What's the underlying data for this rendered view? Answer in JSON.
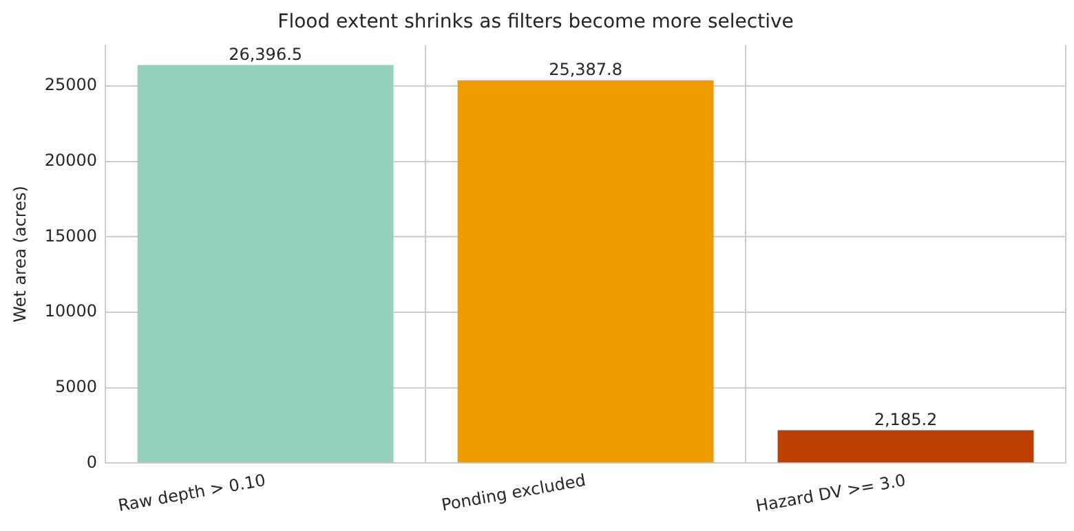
{
  "chart_data": {
    "type": "bar",
    "title": "Flood extent shrinks as filters become more selective",
    "ylabel": "Wet area (acres)",
    "categories": [
      "Raw depth > 0.10",
      "Ponding excluded",
      "Hazard DV >= 3.0"
    ],
    "values": [
      26396.5,
      25387.8,
      2185.2
    ],
    "colors": [
      "#95d1bc",
      "#ee9c00",
      "#bb3f00"
    ],
    "value_labels": [
      "26,396.5",
      "25,387.8",
      "2,185.2"
    ],
    "ylim": [
      0,
      27716
    ],
    "yticks": [
      0,
      5000,
      10000,
      15000,
      20000,
      25000
    ],
    "grid": true,
    "legend": false
  }
}
